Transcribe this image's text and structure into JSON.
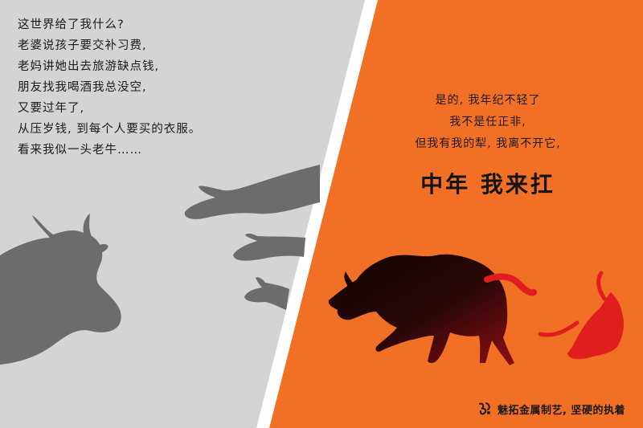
{
  "colors": {
    "left_background": "#d4d4d4",
    "right_background": "#f26f26",
    "divider": "#ffffff",
    "shadow_gray": "#6c6c6c",
    "accent_red": "#e01e1e",
    "text": "#1a1a1a"
  },
  "left_poem": {
    "lines": [
      "这世界给了我什么?",
      "老婆说孩子要交补习费,",
      "老妈讲她出去旅游缺点钱,",
      "朋友找我喝酒我总没空,",
      "又要过年了,",
      "从压岁钱, 到每个人要买的衣服。",
      "看来我似一头老牛……"
    ]
  },
  "right_poem": {
    "lines": [
      "是的, 我年纪不轻了",
      "我不是任正非,",
      "但我有我的犁, 我离不开它,"
    ]
  },
  "slogan": "中年  我来扛",
  "footer": {
    "logo_icon": "metal-craft-logo-icon",
    "text": "魅拓金属制艺, 坚硬的执着"
  },
  "illustrations": {
    "left": [
      "ox-silhouette-icon",
      "reaching-hand-icon",
      "reaching-hand-icon",
      "reaching-hand-icon"
    ],
    "right": [
      "charging-bull-icon",
      "red-ribbon-icon"
    ]
  }
}
